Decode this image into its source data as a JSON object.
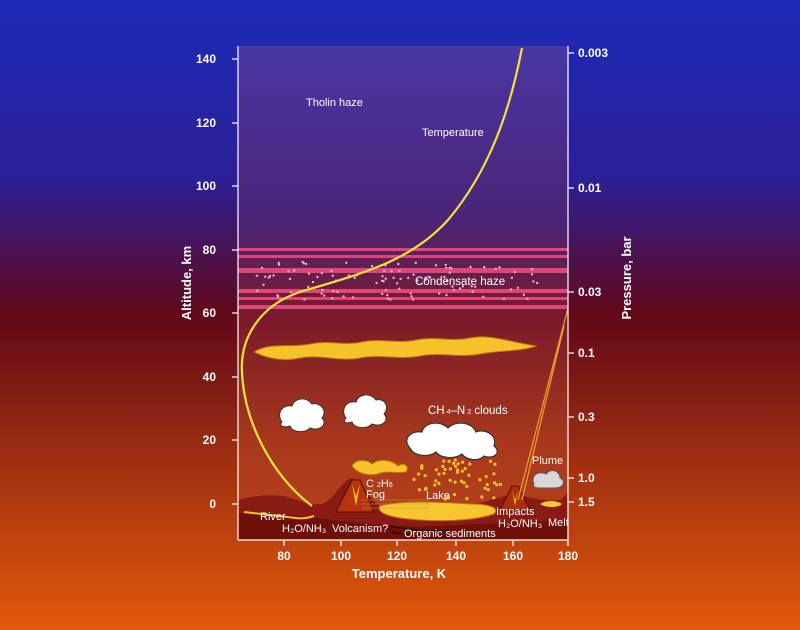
{
  "left_axis": {
    "title": "Altitude, km",
    "ticks": [
      "140",
      "120",
      "100",
      "80",
      "60",
      "40",
      "20",
      "0"
    ]
  },
  "right_axis": {
    "title": "Pressure, bar",
    "ticks": [
      "0.003",
      "0.01",
      "0.03",
      "0.1",
      "0.3",
      "1.0",
      "1.5"
    ]
  },
  "bottom_axis": {
    "title": "Temperature, K",
    "ticks": [
      "80",
      "100",
      "120",
      "140",
      "160",
      "180"
    ]
  },
  "labels": {
    "tholin_haze": "Tholin haze",
    "temperature": "Temperature",
    "condensate_haze": "Condensate haze",
    "clouds_a": "CH",
    "clouds_b": "4",
    "clouds_c": "–N",
    "clouds_d": "2",
    "clouds_e": " clouds",
    "plume": "Plume",
    "c2h6_a": "C",
    "c2h6_b": "2",
    "c2h6_c": "H",
    "c2h6_d": "6",
    "fog": "Fog",
    "lake": "Lake",
    "impacts": "Impacts",
    "h2o_nh3_right": "H₂O/NH₃",
    "melt": "Melt",
    "river": "River",
    "h2o_nh3_left": "H₂O/NH₃",
    "volcanism": "Volcanism?",
    "organic_sediments": "Organic sediments"
  },
  "colors": {
    "temperature_curve": "#f2e23a",
    "haze_band": "#e0457a",
    "cloud_yellow": "#f5c22a",
    "lake": "#f7c52d"
  }
}
